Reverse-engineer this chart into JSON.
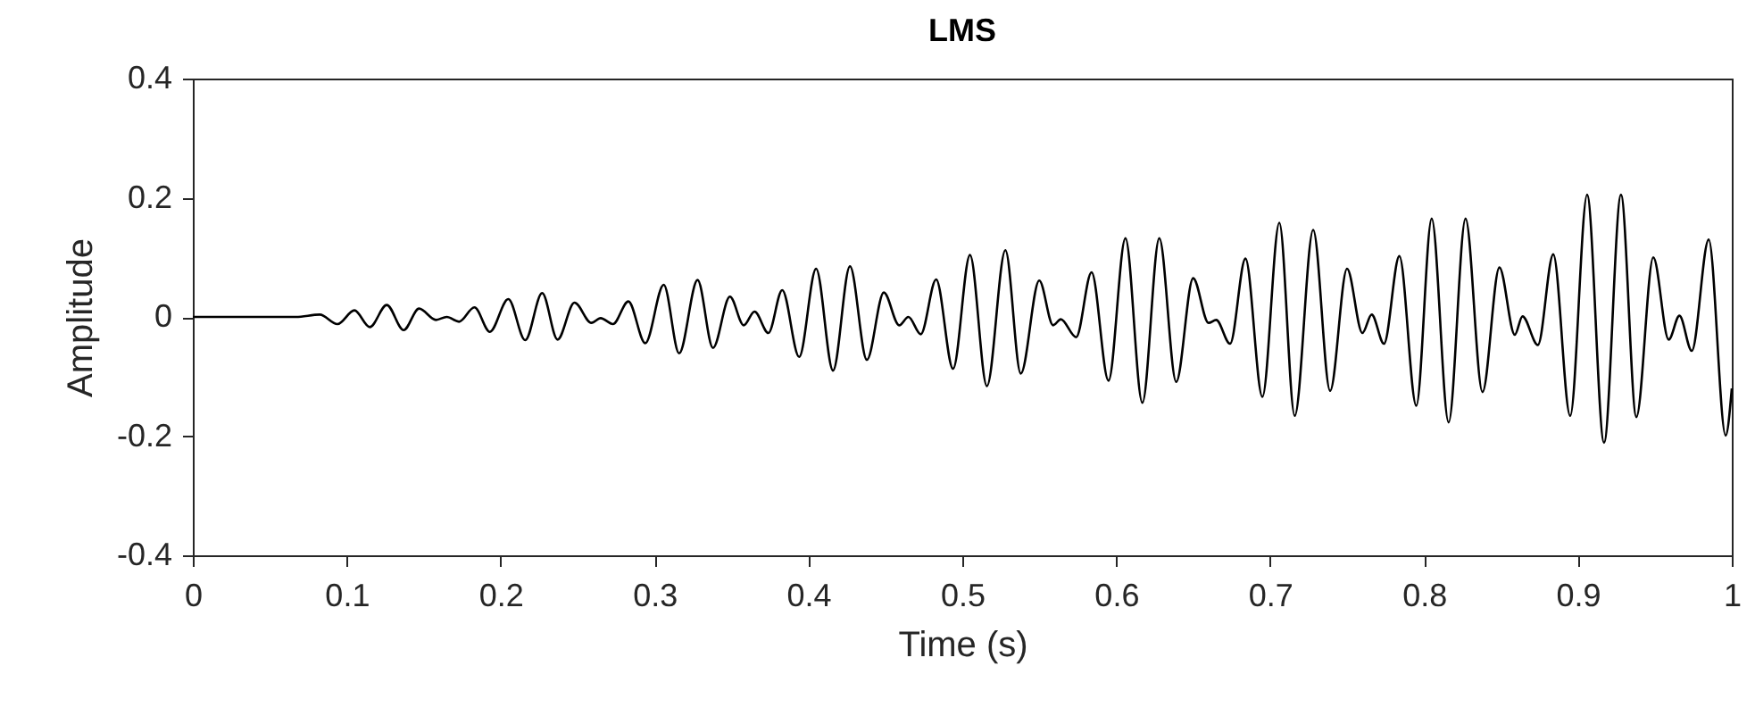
{
  "chart_data": {
    "type": "line",
    "title": "LMS",
    "xlabel": "Time (s)",
    "ylabel": "Amplitude",
    "xlim": [
      0,
      1
    ],
    "xticks": [
      0,
      0.1,
      0.2,
      0.3,
      0.4,
      0.5,
      0.6,
      0.7,
      0.8,
      0.9,
      1
    ],
    "ylim": [
      -0.4,
      0.4
    ],
    "yticks": [
      -0.4,
      -0.2,
      0,
      0.2,
      0.4
    ],
    "grid": false,
    "line_style": "solid",
    "marker": "none",
    "x": [
      0,
      0.067,
      0.0825,
      0.094,
      0.105,
      0.115,
      0.126,
      0.137,
      0.147,
      0.158,
      0.165,
      0.173,
      0.183,
      0.193,
      0.205,
      0.216,
      0.227,
      0.237,
      0.248,
      0.259,
      0.265,
      0.273,
      0.283,
      0.294,
      0.306,
      0.316,
      0.328,
      0.338,
      0.349,
      0.358,
      0.365,
      0.374,
      0.383,
      0.394,
      0.405,
      0.416,
      0.427,
      0.438,
      0.449,
      0.459,
      0.465,
      0.473,
      0.483,
      0.494,
      0.505,
      0.516,
      0.528,
      0.538,
      0.55,
      0.559,
      0.564,
      0.574,
      0.584,
      0.595,
      0.606,
      0.617,
      0.628,
      0.639,
      0.65,
      0.66,
      0.665,
      0.674,
      0.684,
      0.695,
      0.706,
      0.716,
      0.728,
      0.739,
      0.75,
      0.76,
      0.766,
      0.774,
      0.784,
      0.795,
      0.805,
      0.816,
      0.827,
      0.838,
      0.849,
      0.859,
      0.864,
      0.874,
      0.884,
      0.895,
      0.906,
      0.917,
      0.928,
      0.938,
      0.949,
      0.959,
      0.966,
      0.974,
      0.985,
      0.996,
      1
    ],
    "series": [
      {
        "color": "#000000",
        "values": [
          0,
          0,
          0.004,
          -0.012,
          0.011,
          -0.017,
          0.02,
          -0.022,
          0.014,
          -0.005,
          0,
          -0.008,
          0.016,
          -0.025,
          0.03,
          -0.039,
          0.04,
          -0.038,
          0.024,
          -0.01,
          -0.002,
          -0.012,
          0.026,
          -0.044,
          0.054,
          -0.061,
          0.062,
          -0.052,
          0.034,
          -0.014,
          0.009,
          -0.027,
          0.045,
          -0.067,
          0.081,
          -0.09,
          0.085,
          -0.072,
          0.041,
          -0.014,
          0,
          -0.029,
          0.063,
          -0.087,
          0.104,
          -0.116,
          0.112,
          -0.095,
          0.061,
          -0.014,
          -0.004,
          -0.034,
          0.075,
          -0.107,
          0.132,
          -0.144,
          0.132,
          -0.109,
          0.065,
          -0.01,
          -0.005,
          -0.045,
          0.098,
          -0.134,
          0.158,
          -0.166,
          0.146,
          -0.124,
          0.081,
          -0.027,
          0.004,
          -0.045,
          0.102,
          -0.149,
          0.165,
          -0.177,
          0.165,
          -0.126,
          0.083,
          -0.03,
          0.001,
          -0.047,
          0.105,
          -0.166,
          0.205,
          -0.211,
          0.205,
          -0.168,
          0.1,
          -0.038,
          0.002,
          -0.057,
          0.13,
          -0.199,
          -0.12
        ]
      }
    ]
  }
}
